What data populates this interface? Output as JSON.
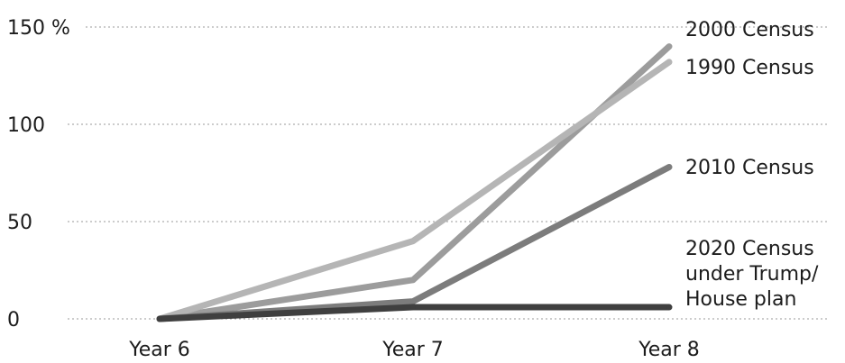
{
  "chart_data": {
    "type": "line",
    "x": [
      "Year 6",
      "Year 7",
      "Year 8"
    ],
    "y_ticks": [
      {
        "value": 150,
        "label": "150 %"
      },
      {
        "value": 100,
        "label": "100"
      },
      {
        "value": 50,
        "label": "50"
      },
      {
        "value": 0,
        "label": "0"
      }
    ],
    "ylim": [
      0,
      150
    ],
    "grid": true,
    "legend": "direct labels at right end of lines",
    "series": [
      {
        "name": "2000 Census",
        "values": [
          0,
          20,
          140
        ],
        "color": "#9c9c9c"
      },
      {
        "name": "1990 Census",
        "values": [
          0,
          40,
          132
        ],
        "color": "#b5b5b5"
      },
      {
        "name": "2010 Census",
        "values": [
          0,
          9,
          78
        ],
        "color": "#7c7c7c"
      },
      {
        "name": "2020 Census under Trump/ House plan",
        "label_lines": [
          "2020 Census",
          "under Trump/",
          "House plan"
        ],
        "values": [
          0,
          6,
          6
        ],
        "color": "#3f3f3f"
      }
    ]
  }
}
